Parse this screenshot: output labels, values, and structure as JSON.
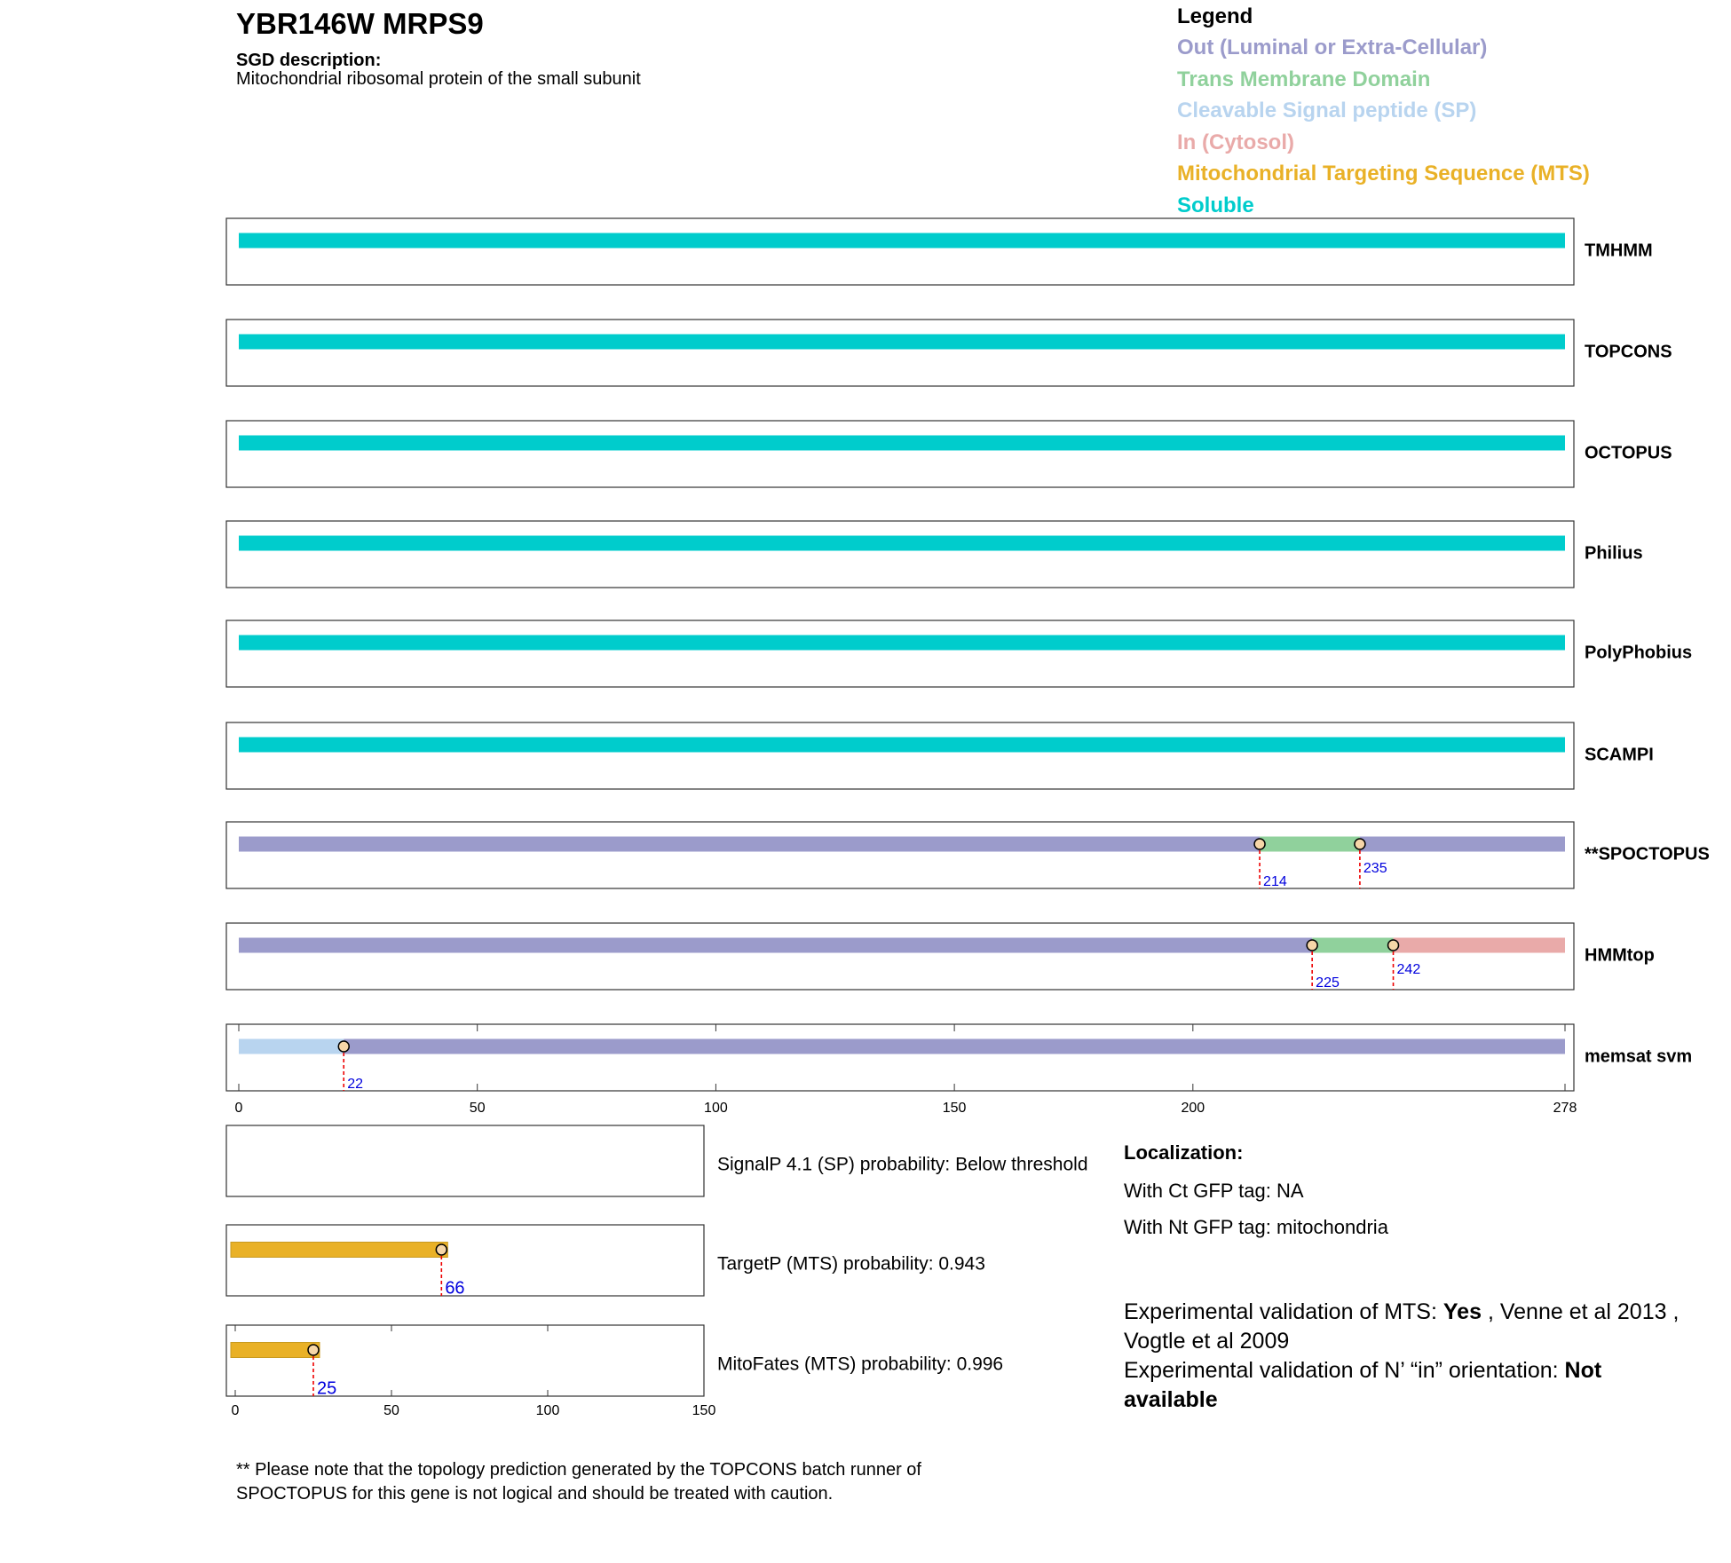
{
  "header": {
    "title": "YBR146W  MRPS9",
    "description_label": "SGD description:",
    "description": "Mitochondrial ribosomal protein of the small subunit"
  },
  "legend": {
    "title": "Legend",
    "items": [
      {
        "label": "Out (Luminal or Extra-Cellular)",
        "color": "#9b9bcb"
      },
      {
        "label": "Trans Membrane Domain",
        "color": "#90d19c"
      },
      {
        "label": "Cleavable Signal peptide (SP)",
        "color": "#b8d4ef"
      },
      {
        "label": "In (Cytosol)",
        "color": "#e9aaa9"
      },
      {
        "label": "Mitochondrial Targeting Sequence (MTS)",
        "color": "#e9b127"
      },
      {
        "label": "Soluble",
        "color": "#00cccc"
      }
    ]
  },
  "topology": {
    "xlim": [
      0,
      278
    ],
    "xticks": [
      0,
      50,
      100,
      150,
      200,
      278
    ],
    "tracks": [
      {
        "name": "TMHMM",
        "boundaries": [],
        "colors": [
          "#00cccc"
        ]
      },
      {
        "name": "TOPCONS",
        "boundaries": [],
        "colors": [
          "#00cccc"
        ]
      },
      {
        "name": "OCTOPUS",
        "boundaries": [],
        "colors": [
          "#00cccc"
        ]
      },
      {
        "name": "Philius",
        "boundaries": [],
        "colors": [
          "#00cccc"
        ]
      },
      {
        "name": "PolyPhobius",
        "boundaries": [],
        "colors": [
          "#00cccc"
        ]
      },
      {
        "name": "SCAMPI",
        "boundaries": [],
        "colors": [
          "#00cccc"
        ]
      },
      {
        "name": "**SPOCTOPUS",
        "boundaries": [
          214,
          235
        ],
        "colors": [
          "#9b9bcb",
          "#90d19c",
          "#9b9bcb"
        ]
      },
      {
        "name": "HMMtop",
        "boundaries": [
          225,
          242
        ],
        "colors": [
          "#9b9bcb",
          "#90d19c",
          "#e9aaa9"
        ]
      },
      {
        "name": "memsat svm",
        "boundaries": [
          22
        ],
        "colors": [
          "#b8d4ef",
          "#9b9bcb"
        ]
      }
    ]
  },
  "mts": {
    "xlim": [
      0,
      150
    ],
    "xticks": [
      0,
      50,
      100,
      150
    ],
    "color": "#e9b127",
    "panels": [
      {
        "label": "SignalP 4.1 (SP) probability: Below threshold",
        "boundaries": []
      },
      {
        "label": "TargetP (MTS) probability: 0.943",
        "boundaries": [
          66
        ]
      },
      {
        "label": "MitoFates (MTS) probability: 0.996",
        "boundaries": [
          25
        ]
      }
    ]
  },
  "localization": {
    "title": "Localization:",
    "lines": [
      "With Ct GFP tag: NA",
      "With Nt GFP tag: mitochondria"
    ]
  },
  "validation": [
    [
      {
        "text": "Experimental validation of MTS: ",
        "bold": false
      },
      {
        "text": "Yes",
        "bold": true
      },
      {
        "text": " , Venne et al 2013 , Vogtle et al 2009",
        "bold": false
      }
    ],
    [
      {
        "text": "Experimental validation of N’ “in” orientation: ",
        "bold": false
      },
      {
        "text": "Not available",
        "bold": true
      }
    ]
  ],
  "footnote": [
    "** Please note that the topology prediction generated by the TOPCONS batch runner of",
    "SPOCTOPUS for this gene is not logical and should be treated with caution."
  ]
}
